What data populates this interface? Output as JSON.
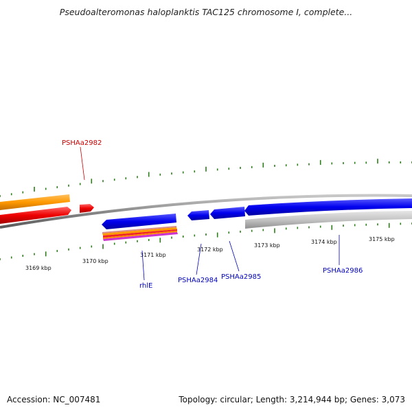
{
  "title": "Pseudoalteromonas haloplanktis TAC125 chromosome I, complete...",
  "footer": {
    "accession": "Accession: NC_007481",
    "summary": "Topology: circular; Length: 3,214,944 bp; Genes: 3,073"
  },
  "scale_labels": [
    "3169 kbp",
    "3170 kbp",
    "3171 kbp",
    "3172 kbp",
    "3173 kbp",
    "3174 kbp",
    "3175 kbp"
  ],
  "gene_labels": {
    "red": [
      "PSHAa2982"
    ],
    "blue": [
      "rhlE",
      "PSHAa2984",
      "PSHAa2985",
      "PSHAa2986"
    ]
  },
  "colors": {
    "red_label": "#cc0000",
    "blue_label": "#0000bb",
    "tick": "#2e7d1a",
    "orange": "#ff9900",
    "red": "#ee0000",
    "blue": "#0000ee",
    "grey": "#b8b8b8",
    "backbone": "#8a8a8a"
  }
}
